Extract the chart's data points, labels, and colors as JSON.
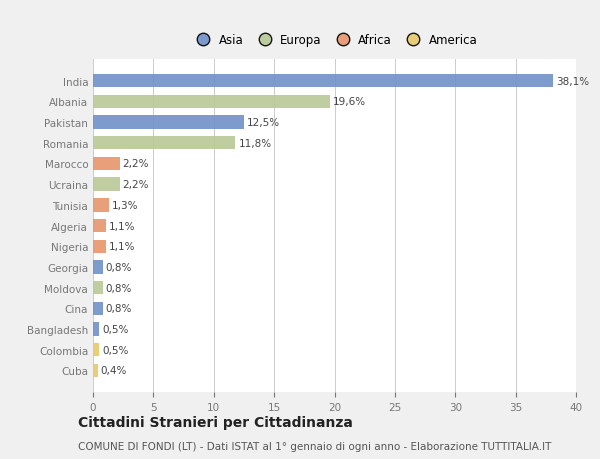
{
  "categories": [
    "India",
    "Albania",
    "Pakistan",
    "Romania",
    "Marocco",
    "Ucraina",
    "Tunisia",
    "Algeria",
    "Nigeria",
    "Georgia",
    "Moldova",
    "Cina",
    "Bangladesh",
    "Colombia",
    "Cuba"
  ],
  "values": [
    38.1,
    19.6,
    12.5,
    11.8,
    2.2,
    2.2,
    1.3,
    1.1,
    1.1,
    0.8,
    0.8,
    0.8,
    0.5,
    0.5,
    0.4
  ],
  "labels": [
    "38,1%",
    "19,6%",
    "12,5%",
    "11,8%",
    "2,2%",
    "2,2%",
    "1,3%",
    "1,1%",
    "1,1%",
    "0,8%",
    "0,8%",
    "0,8%",
    "0,5%",
    "0,5%",
    "0,4%"
  ],
  "colors": [
    "#7090c8",
    "#b8c896",
    "#7090c8",
    "#b8c896",
    "#e8956d",
    "#b8c896",
    "#e8956d",
    "#e8956d",
    "#e8956d",
    "#7090c8",
    "#b8c896",
    "#7090c8",
    "#7090c8",
    "#e8c86a",
    "#e8c86a"
  ],
  "legend_labels": [
    "Asia",
    "Europa",
    "Africa",
    "America"
  ],
  "legend_colors": [
    "#7090c8",
    "#b8c896",
    "#e8956d",
    "#e8c86a"
  ],
  "xlim": [
    0,
    40
  ],
  "xticks": [
    0,
    5,
    10,
    15,
    20,
    25,
    30,
    35,
    40
  ],
  "title": "Cittadini Stranieri per Cittadinanza",
  "subtitle": "COMUNE DI FONDI (LT) - Dati ISTAT al 1° gennaio di ogni anno - Elaborazione TUTTITALIA.IT",
  "background_color": "#f0f0f0",
  "plot_background": "#ffffff",
  "grid_color": "#cccccc",
  "bar_height": 0.65,
  "label_fontsize": 7.5,
  "tick_fontsize": 7.5,
  "title_fontsize": 10,
  "subtitle_fontsize": 7.5
}
